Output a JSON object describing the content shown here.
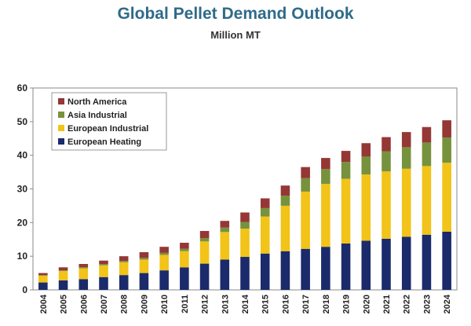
{
  "title": "Global Pellet Demand Outlook",
  "subtitle": "Million MT",
  "colors": {
    "european_heating": "#1b2a6b",
    "european_industrial": "#f2c318",
    "asia_industrial": "#77923c",
    "north_america": "#953735"
  },
  "chart_data": {
    "type": "bar",
    "stacked": true,
    "categories": [
      "2004",
      "2005",
      "2006",
      "2007",
      "2008",
      "2009",
      "2010",
      "2011",
      "2012",
      "2013",
      "2014",
      "2015",
      "2016",
      "2017",
      "2018",
      "2019",
      "2020",
      "2021",
      "2022",
      "2023",
      "2024"
    ],
    "series": [
      {
        "name": "European Heating",
        "color": "#1b2a6b",
        "values": [
          2.2,
          2.8,
          3.2,
          3.8,
          4.4,
          5.0,
          5.8,
          6.7,
          7.8,
          9.0,
          9.8,
          10.8,
          11.5,
          12.2,
          12.8,
          13.8,
          14.6,
          15.2,
          15.8,
          16.4,
          17.3
        ]
      },
      {
        "name": "European Industrial",
        "color": "#f2c318",
        "values": [
          2.0,
          2.8,
          3.2,
          3.5,
          3.8,
          4.0,
          4.6,
          4.8,
          6.6,
          8.2,
          8.4,
          11.0,
          13.5,
          17.0,
          18.7,
          19.2,
          19.7,
          20.0,
          20.2,
          20.4,
          20.5
        ]
      },
      {
        "name": "Asia Industrial",
        "color": "#77923c",
        "values": [
          0.2,
          0.2,
          0.3,
          0.4,
          0.4,
          0.5,
          0.6,
          0.7,
          1.0,
          1.3,
          2.0,
          2.5,
          3.0,
          4.0,
          4.4,
          5.0,
          5.3,
          6.0,
          6.4,
          7.0,
          7.5
        ]
      },
      {
        "name": "North America",
        "color": "#953735",
        "values": [
          0.6,
          0.9,
          1.0,
          1.0,
          1.4,
          1.7,
          1.8,
          1.8,
          2.1,
          2.0,
          2.8,
          2.9,
          3.0,
          3.3,
          3.3,
          3.3,
          4.0,
          4.2,
          4.5,
          4.6,
          5.1
        ]
      }
    ],
    "legend_order": [
      "North America",
      "Asia Industrial",
      "European Industrial",
      "European Heating"
    ],
    "legend_position": "top-left",
    "yticks": [
      0,
      10,
      20,
      30,
      40,
      50,
      60
    ],
    "ylim": [
      0,
      60
    ],
    "grid": false,
    "xlabel": "",
    "ylabel": ""
  }
}
